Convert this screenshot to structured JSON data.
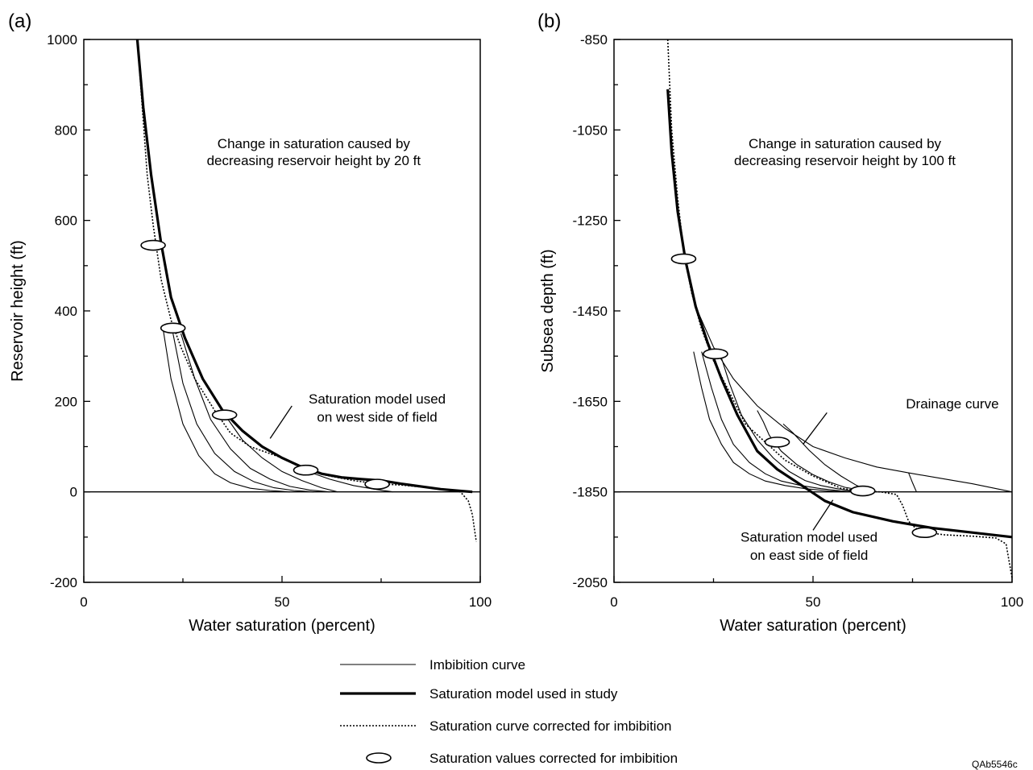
{
  "chart_data": [
    {
      "type": "line",
      "panel_label": "(a)",
      "xlabel": "Water saturation (percent)",
      "ylabel": "Reservoir height (ft)",
      "xlim": [
        0,
        100
      ],
      "ylim": [
        -200,
        1000
      ],
      "x_ticks": [
        0,
        50,
        100
      ],
      "y_ticks": [
        1000,
        800,
        600,
        400,
        200,
        0,
        -200
      ],
      "reference_line_y": 0,
      "annotations": [
        {
          "text": "Change in saturation caused by",
          "anchor_x": 58,
          "anchor_y": 760
        },
        {
          "text": "decreasing reservoir height by 20 ft",
          "anchor_x": 58,
          "anchor_y": 722
        },
        {
          "text": "Saturation model used",
          "anchor_x": 74,
          "anchor_y": 195
        },
        {
          "text": "on west side of field",
          "anchor_x": 74,
          "anchor_y": 155
        }
      ],
      "leader": [
        [
          52.5,
          190
        ],
        [
          47,
          118
        ]
      ],
      "series": [
        {
          "role": "model",
          "x": [
            13.5,
            15,
            17,
            19.5,
            22,
            25.5,
            30,
            35,
            40,
            45,
            50,
            55,
            60,
            65,
            70,
            75,
            80,
            85,
            90,
            95,
            98
          ],
          "y": [
            1000,
            850,
            700,
            550,
            430,
            340,
            250,
            180,
            135,
            100,
            75,
            55,
            40,
            32,
            28,
            25,
            18,
            12,
            6,
            2,
            0
          ]
        },
        {
          "role": "corrected",
          "x": [
            13.5,
            15,
            16,
            17.5,
            19.5,
            22,
            24.5,
            28,
            33,
            37,
            42,
            50,
            56,
            62,
            68,
            74,
            80,
            86,
            91,
            95,
            97,
            98,
            98.5,
            99
          ],
          "y": [
            1000,
            820,
            700,
            590,
            470,
            380,
            320,
            250,
            180,
            130,
            100,
            75,
            48,
            35,
            25,
            18,
            15,
            10,
            5,
            0,
            -20,
            -50,
            -80,
            -110
          ]
        },
        {
          "role": "imbibition",
          "x": [
            20,
            22,
            25,
            29,
            33,
            37,
            42,
            47,
            52
          ],
          "y": [
            360,
            250,
            150,
            80,
            40,
            20,
            8,
            3,
            0
          ]
        },
        {
          "role": "imbibition",
          "x": [
            22.5,
            25,
            28.5,
            33,
            38,
            43,
            48,
            53,
            58
          ],
          "y": [
            350,
            240,
            150,
            85,
            45,
            22,
            9,
            3,
            0
          ]
        },
        {
          "role": "imbibition",
          "x": [
            24.5,
            28,
            32,
            37,
            42,
            47,
            52,
            57,
            62
          ],
          "y": [
            350,
            250,
            160,
            95,
            52,
            28,
            12,
            4,
            0
          ]
        },
        {
          "role": "imbibition",
          "x": [
            36,
            40,
            45,
            50,
            55,
            60,
            64
          ],
          "y": [
            165,
            115,
            75,
            45,
            25,
            9,
            0
          ]
        },
        {
          "role": "imbibition",
          "x": [
            56.5,
            62,
            68,
            74,
            78
          ],
          "y": [
            45,
            28,
            14,
            5,
            0
          ]
        }
      ],
      "points": [
        {
          "x": 17.5,
          "y": 545
        },
        {
          "x": 22.5,
          "y": 362
        },
        {
          "x": 35.5,
          "y": 170
        },
        {
          "x": 56,
          "y": 48
        },
        {
          "x": 74,
          "y": 17
        }
      ]
    },
    {
      "type": "line",
      "panel_label": "(b)",
      "xlabel": "Water saturation (percent)",
      "ylabel": "Subsea depth (ft)",
      "xlim": [
        0,
        100
      ],
      "ylim": [
        -2050,
        -850
      ],
      "x_ticks": [
        0,
        50,
        100
      ],
      "y_ticks": [
        -850,
        -1050,
        -1250,
        -1450,
        -1650,
        -1850,
        -2050
      ],
      "reference_line_y": -1850,
      "annotations": [
        {
          "text": "Change in saturation caused by",
          "anchor_x": 58,
          "anchor_y": -1090
        },
        {
          "text": "decreasing reservoir height by 100 ft",
          "anchor_x": 58,
          "anchor_y": -1128
        },
        {
          "text": "Drainage curve",
          "anchor_x": 85,
          "anchor_y": -1665
        },
        {
          "text": "Saturation model used",
          "anchor_x": 49,
          "anchor_y": -1960
        },
        {
          "text": "on east side of field",
          "anchor_x": 49,
          "anchor_y": -2000
        }
      ],
      "leaders": [
        [
          [
            53.5,
            -1675
          ],
          [
            47.5,
            -1745
          ]
        ],
        [
          [
            50,
            -1935
          ],
          [
            55,
            -1868
          ]
        ]
      ],
      "series": [
        {
          "role": "model",
          "x": [
            13.5,
            14.5,
            16,
            18,
            20.5,
            23.5,
            27,
            31,
            36,
            41,
            47,
            53,
            60,
            70,
            80,
            90,
            100
          ],
          "y": [
            -960,
            -1100,
            -1230,
            -1340,
            -1440,
            -1520,
            -1600,
            -1680,
            -1760,
            -1800,
            -1835,
            -1870,
            -1895,
            -1915,
            -1930,
            -1940,
            -1950
          ]
        },
        {
          "role": "corrected",
          "x": [
            13.5,
            14.5,
            16,
            17.5,
            19.5,
            22,
            25,
            29,
            33,
            38,
            43,
            50,
            57,
            62,
            67,
            71,
            72.5,
            74,
            75.5,
            77,
            83,
            90,
            96,
            98.5,
            99.2,
            100
          ],
          "y": [
            -850,
            -1050,
            -1200,
            -1320,
            -1410,
            -1490,
            -1560,
            -1630,
            -1700,
            -1740,
            -1780,
            -1815,
            -1842,
            -1848,
            -1850,
            -1856,
            -1880,
            -1915,
            -1928,
            -1938,
            -1945,
            -1948,
            -1952,
            -1965,
            -2000,
            -2040
          ]
        },
        {
          "role": "drainage",
          "x": [
            17.5,
            21,
            25,
            30,
            36,
            43,
            50,
            58,
            66,
            74,
            82,
            90,
            100
          ],
          "y": [
            -1330,
            -1450,
            -1530,
            -1600,
            -1660,
            -1710,
            -1750,
            -1775,
            -1795,
            -1808,
            -1820,
            -1832,
            -1850
          ]
        },
        {
          "role": "imbibition",
          "x": [
            20,
            22,
            24,
            27,
            30,
            34,
            38,
            43,
            48,
            54,
            60
          ],
          "y": [
            -1540,
            -1620,
            -1690,
            -1745,
            -1785,
            -1810,
            -1826,
            -1836,
            -1843,
            -1848,
            -1850
          ]
        },
        {
          "role": "imbibition",
          "x": [
            22,
            24.5,
            27,
            30,
            34,
            38,
            42,
            47,
            52,
            57,
            62
          ],
          "y": [
            -1540,
            -1620,
            -1690,
            -1745,
            -1785,
            -1810,
            -1826,
            -1836,
            -1843,
            -1848,
            -1850
          ]
        },
        {
          "role": "imbibition",
          "x": [
            26.5,
            29,
            32,
            36,
            40,
            44,
            48,
            52,
            56,
            60,
            64
          ],
          "y": [
            -1540,
            -1610,
            -1680,
            -1735,
            -1775,
            -1805,
            -1825,
            -1836,
            -1843,
            -1848,
            -1850
          ]
        },
        {
          "role": "imbibition",
          "x": [
            36,
            37.5,
            39,
            42,
            46,
            50,
            54,
            58,
            62,
            66
          ],
          "y": [
            -1670,
            -1695,
            -1725,
            -1760,
            -1790,
            -1812,
            -1828,
            -1840,
            -1846,
            -1850
          ]
        },
        {
          "role": "imbibition",
          "x": [
            42.5,
            45,
            49,
            53,
            57,
            61,
            65
          ],
          "y": [
            -1700,
            -1720,
            -1758,
            -1790,
            -1815,
            -1836,
            -1850
          ]
        },
        {
          "role": "imbibition",
          "x": [
            74,
            75,
            76
          ],
          "y": [
            -1808,
            -1830,
            -1850
          ]
        }
      ],
      "points": [
        {
          "x": 17.5,
          "y": -1335
        },
        {
          "x": 25.5,
          "y": -1545
        },
        {
          "x": 41,
          "y": -1740
        },
        {
          "x": 62.5,
          "y": -1848
        },
        {
          "x": 78,
          "y": -1940
        }
      ]
    }
  ],
  "legend": {
    "position": "bottom-center",
    "items": [
      {
        "style": "imbibition",
        "label": "Imbibition curve"
      },
      {
        "style": "model",
        "label": "Saturation model used in study"
      },
      {
        "style": "corrected",
        "label": "Saturation curve corrected for imbibition"
      },
      {
        "style": "ellipse",
        "label": "Saturation values corrected for imbibition"
      }
    ]
  },
  "figure_code": "QAb5546c"
}
